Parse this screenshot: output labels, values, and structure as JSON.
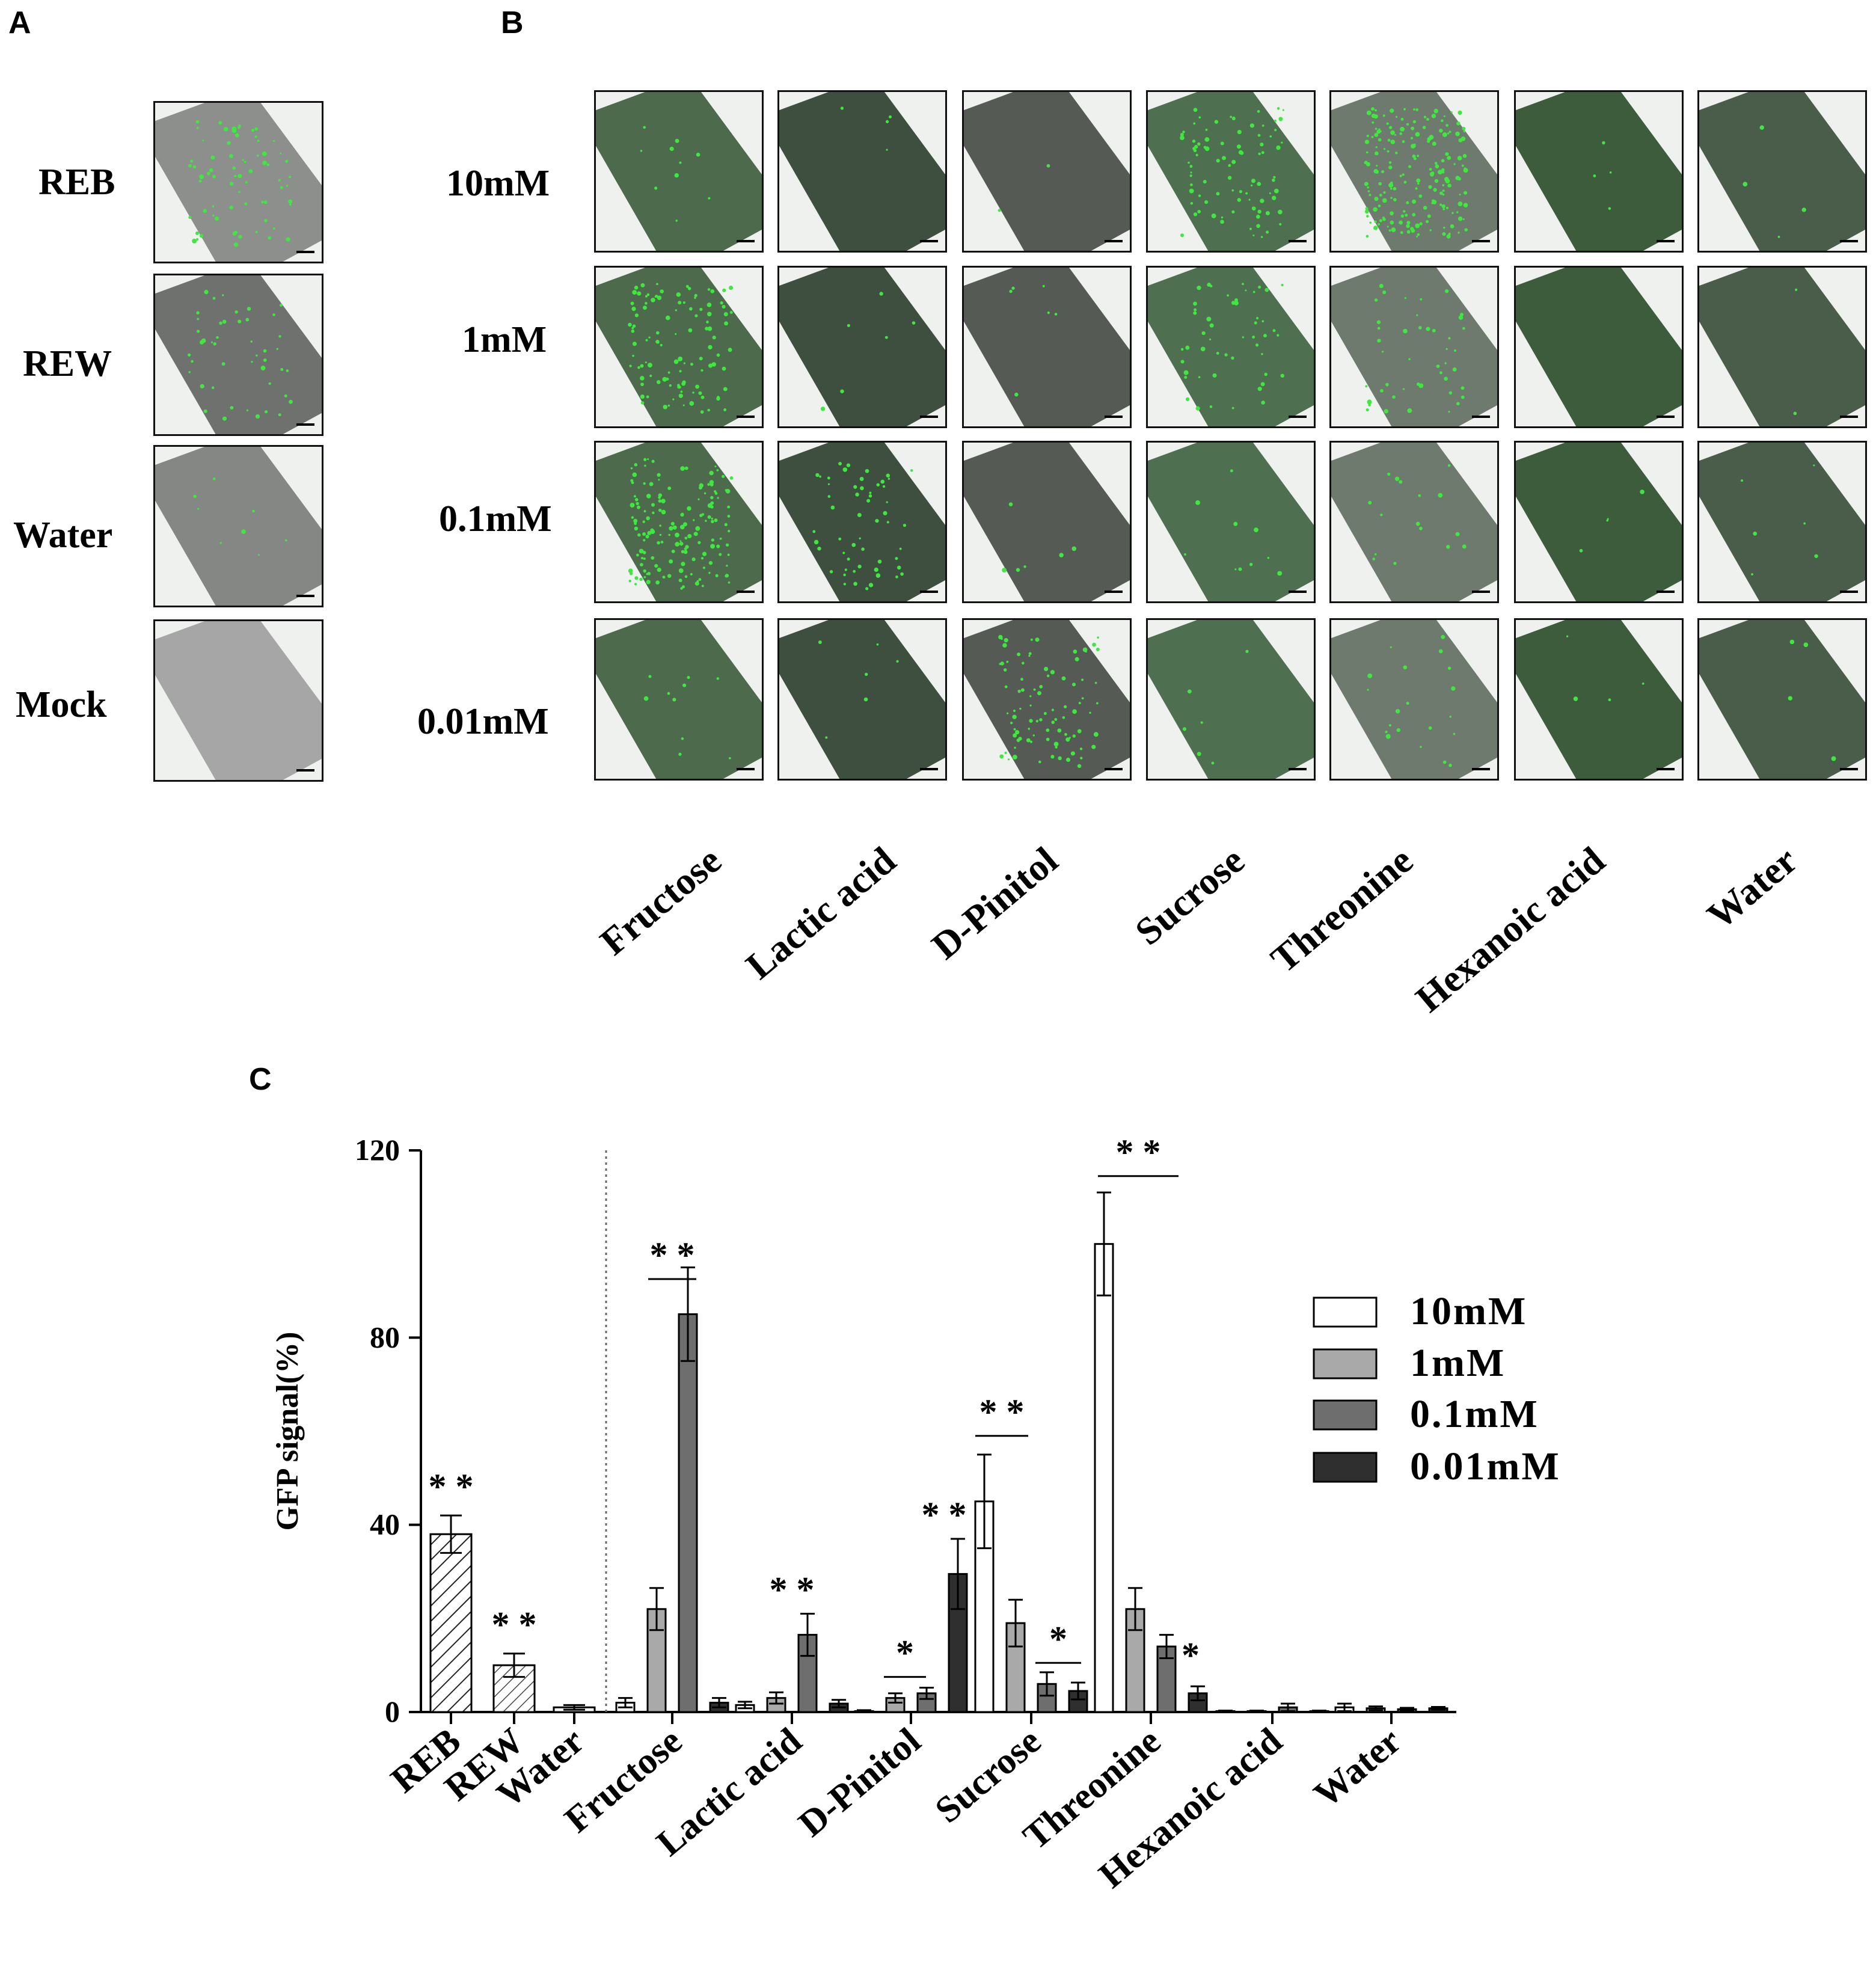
{
  "panels": {
    "a": "A",
    "b": "B",
    "c": "C"
  },
  "panel_a": {
    "rows": [
      "REB",
      "REW",
      "Water",
      "Mock"
    ]
  },
  "panel_b": {
    "rows": [
      "10mM",
      "1mM",
      "0.1mM",
      "0.01mM"
    ],
    "columns": [
      "Fructose",
      "Lactic acid",
      "D-Pinitol",
      "Sucrose",
      "Threonine",
      "Hexanoic acid",
      "Water"
    ]
  },
  "colors": {
    "gfp": "#3ee83e",
    "c10mM": "#ffffff",
    "c1mM": "#a9a9a9",
    "c01mM": "#6e6e6e",
    "c001mM": "#2f2f2f"
  },
  "chart_data": {
    "type": "bar",
    "ylabel": "GFP signal(%)",
    "ylim": [
      0,
      120
    ],
    "yticks": [
      "0",
      "40",
      "80",
      "120"
    ],
    "legend_position": "right",
    "controls": {
      "categories": [
        "REB",
        "REW",
        "Water"
      ],
      "values": [
        38,
        10,
        1
      ],
      "errors": [
        4,
        2.5,
        0.5
      ],
      "significance": [
        "**",
        "**",
        ""
      ]
    },
    "categories": [
      "Fructose",
      "Lactic acid",
      "D-Pinitol",
      "Sucrose",
      "Threonine",
      "Hexanoic acid",
      "Water"
    ],
    "series": [
      {
        "name": "10mM",
        "values": [
          2,
          1.5,
          0.2,
          45,
          100,
          0.2,
          1
        ],
        "errors": [
          1,
          0.7,
          0.2,
          10,
          11,
          0.1,
          0.8
        ]
      },
      {
        "name": "1mM",
        "values": [
          22,
          3,
          3,
          19,
          22,
          0.2,
          0.8
        ],
        "errors": [
          4.5,
          1.2,
          1,
          5,
          4.5,
          0.1,
          0.4
        ]
      },
      {
        "name": "0.1mM",
        "values": [
          85,
          16.5,
          4,
          6,
          14,
          1,
          0.6
        ],
        "errors": [
          10,
          4.5,
          1.2,
          2.5,
          2.5,
          0.8,
          0.3
        ]
      },
      {
        "name": "0.01mM",
        "values": [
          2,
          1.8,
          29.5,
          4.5,
          4,
          0.2,
          0.8
        ],
        "errors": [
          1,
          0.8,
          7.5,
          1.8,
          1.5,
          0.1,
          0.3
        ]
      }
    ],
    "significance": [
      {
        "category": "Fructose",
        "label": "* *"
      },
      {
        "category": "Lactic acid",
        "label": "* *"
      },
      {
        "category": "D-Pinitol",
        "label": "*"
      },
      {
        "category": "D-Pinitol",
        "label": "* *"
      },
      {
        "category": "Sucrose",
        "label": "* *"
      },
      {
        "category": "Sucrose",
        "label": "*"
      },
      {
        "category": "Threonine",
        "label": "* *"
      },
      {
        "category": "Threonine",
        "label": "*"
      }
    ]
  }
}
